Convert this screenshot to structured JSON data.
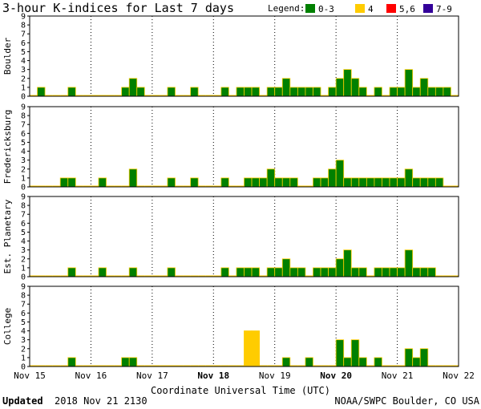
{
  "title": "3-hour K-indices for Last 7 days",
  "legend": {
    "label": "Legend:",
    "items": [
      {
        "label": "0-3",
        "color": "#008000"
      },
      {
        "label": "4",
        "color": "#ffcc00"
      },
      {
        "label": "5,6",
        "color": "#ff0000"
      },
      {
        "label": "7-9",
        "color": "#330099"
      }
    ]
  },
  "xlabel": "Coordinate Universal Time (UTC)",
  "footer": {
    "updated_label": "Updated",
    "updated_value": "2018 Nov 21 2130",
    "source": "NOAA/SWPC Boulder, CO USA"
  },
  "chart_data": {
    "type": "bar",
    "x_ticks": [
      "Nov 15",
      "Nov 16",
      "Nov 17",
      "Nov 18",
      "Nov 19",
      "Nov 20",
      "Nov 21",
      "Nov 22"
    ],
    "x_ticks_bold": [
      "Nov 18",
      "Nov 20"
    ],
    "interval_hours": 3,
    "ylim": [
      0,
      9
    ],
    "yticks": [
      0,
      1,
      2,
      3,
      4,
      5,
      6,
      7,
      8,
      9
    ],
    "grid": true,
    "series": [
      {
        "name": "Boulder",
        "values": [
          0,
          1,
          0,
          0,
          0,
          1,
          0,
          0,
          0,
          0,
          0,
          0,
          1,
          2,
          1,
          0,
          0,
          0,
          1,
          0,
          0,
          1,
          0,
          0,
          0,
          1,
          0,
          1,
          1,
          1,
          0,
          1,
          1,
          2,
          1,
          1,
          1,
          1,
          0,
          1,
          2,
          3,
          2,
          1,
          0,
          1,
          0,
          1,
          1,
          3,
          1,
          2,
          1,
          1,
          1,
          0
        ]
      },
      {
        "name": "Fredericksburg",
        "values": [
          0,
          0,
          0,
          0,
          1,
          1,
          0,
          0,
          0,
          1,
          0,
          0,
          0,
          2,
          0,
          0,
          0,
          0,
          1,
          0,
          0,
          1,
          0,
          0,
          0,
          1,
          0,
          0,
          1,
          1,
          1,
          2,
          1,
          1,
          1,
          0,
          0,
          1,
          1,
          2,
          3,
          1,
          1,
          1,
          1,
          1,
          1,
          1,
          1,
          2,
          1,
          1,
          1,
          1,
          0,
          0
        ]
      },
      {
        "name": "Est. Planetary",
        "values": [
          0,
          0,
          0,
          0,
          0,
          1,
          0,
          0,
          0,
          1,
          0,
          0,
          0,
          1,
          0,
          0,
          0,
          0,
          1,
          0,
          0,
          0,
          0,
          0,
          0,
          1,
          0,
          1,
          1,
          1,
          0,
          1,
          1,
          2,
          1,
          1,
          0,
          1,
          1,
          1,
          2,
          3,
          1,
          1,
          0,
          1,
          1,
          1,
          1,
          3,
          1,
          1,
          1,
          0,
          0,
          0
        ]
      },
      {
        "name": "College",
        "values": [
          0,
          0,
          0,
          0,
          0,
          1,
          0,
          0,
          0,
          0,
          0,
          0,
          1,
          1,
          0,
          0,
          0,
          0,
          0,
          0,
          0,
          0,
          0,
          0,
          0,
          0,
          0,
          0,
          4,
          4,
          0,
          0,
          0,
          1,
          0,
          0,
          1,
          0,
          0,
          0,
          3,
          1,
          3,
          1,
          0,
          1,
          0,
          0,
          0,
          2,
          1,
          2,
          0,
          0,
          0,
          0
        ]
      }
    ]
  }
}
